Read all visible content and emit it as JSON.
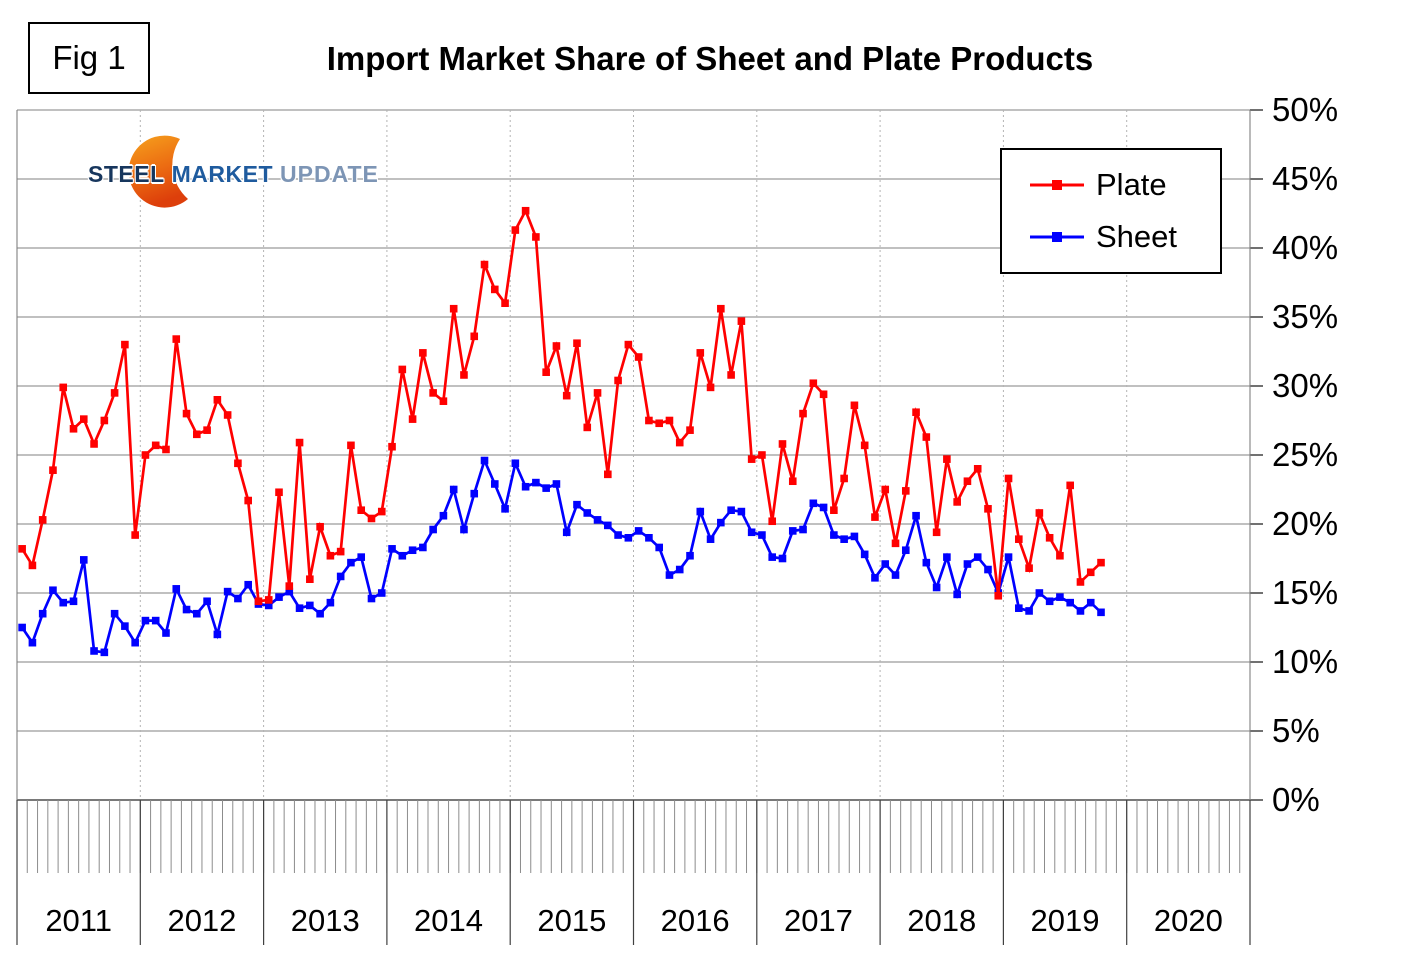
{
  "fig_label": "Fig 1",
  "title": "Import Market Share of Sheet and Plate Products",
  "logo": {
    "word1": "STEEL",
    "word2": "MARKET",
    "word3": "UPDATE"
  },
  "legend": {
    "items": [
      {
        "label": "Plate",
        "color": "#ff0000"
      },
      {
        "label": "Sheet",
        "color": "#0000ff"
      }
    ]
  },
  "chart_data": {
    "type": "line",
    "title": "Import Market Share of Sheet and Plate Products",
    "xlabel": "",
    "ylabel": "",
    "ylim": [
      0,
      50
    ],
    "grid": true,
    "legend_position": "top-right",
    "x_unit": "month",
    "x_total_months": 120,
    "years": [
      "2011",
      "2012",
      "2013",
      "2014",
      "2015",
      "2016",
      "2017",
      "2018",
      "2019",
      "2020"
    ],
    "x_range_of_data": "Jan 2011 - Oct 2019",
    "y_ticks": [
      {
        "value": 0,
        "label": "0%"
      },
      {
        "value": 5,
        "label": "5%"
      },
      {
        "value": 10,
        "label": "10%"
      },
      {
        "value": 15,
        "label": "15%"
      },
      {
        "value": 20,
        "label": "20%"
      },
      {
        "value": 25,
        "label": "25%"
      },
      {
        "value": 30,
        "label": "30%"
      },
      {
        "value": 35,
        "label": "35%"
      },
      {
        "value": 40,
        "label": "40%"
      },
      {
        "value": 45,
        "label": "45%"
      },
      {
        "value": 50,
        "label": "50%"
      }
    ],
    "series": [
      {
        "name": "Plate",
        "color": "#ff0000",
        "values": [
          18.2,
          17.0,
          20.3,
          23.9,
          29.9,
          26.9,
          27.6,
          25.8,
          27.5,
          29.5,
          33.0,
          19.2,
          25.0,
          25.7,
          25.4,
          33.4,
          28.0,
          26.5,
          26.8,
          29.0,
          27.9,
          24.4,
          21.7,
          14.4,
          14.5,
          22.3,
          15.5,
          25.9,
          16.0,
          19.8,
          17.7,
          18.0,
          25.7,
          21.0,
          20.4,
          20.9,
          25.6,
          31.2,
          27.6,
          32.4,
          29.5,
          28.9,
          35.6,
          30.8,
          33.6,
          38.8,
          37.0,
          36.0,
          41.3,
          42.7,
          40.8,
          31.0,
          32.9,
          29.3,
          33.1,
          27.0,
          29.5,
          23.6,
          30.4,
          33.0,
          32.1,
          27.5,
          27.3,
          27.5,
          25.9,
          26.8,
          32.4,
          29.9,
          35.6,
          30.8,
          34.7,
          24.7,
          25.0,
          20.2,
          25.8,
          23.1,
          28.0,
          30.2,
          29.4,
          21.0,
          23.3,
          28.6,
          25.7,
          20.5,
          22.5,
          18.6,
          22.4,
          28.1,
          26.3,
          19.4,
          24.7,
          21.6,
          23.1,
          24.0,
          21.1,
          14.8,
          23.3,
          18.9,
          16.8,
          20.8,
          19.0,
          17.7,
          22.8,
          15.8,
          16.5,
          17.2
        ]
      },
      {
        "name": "Sheet",
        "color": "#0000ff",
        "values": [
          12.5,
          11.4,
          13.5,
          15.2,
          14.3,
          14.4,
          17.4,
          10.8,
          10.7,
          13.5,
          12.6,
          11.4,
          13.0,
          13.0,
          12.1,
          15.3,
          13.8,
          13.5,
          14.4,
          12.0,
          15.1,
          14.6,
          15.6,
          14.2,
          14.1,
          14.7,
          15.1,
          13.9,
          14.1,
          13.5,
          14.3,
          16.2,
          17.2,
          17.6,
          14.6,
          15.0,
          18.2,
          17.7,
          18.1,
          18.3,
          19.6,
          20.6,
          22.5,
          19.6,
          22.2,
          24.6,
          22.9,
          21.1,
          24.4,
          22.7,
          23.0,
          22.6,
          22.9,
          19.4,
          21.4,
          20.8,
          20.3,
          19.9,
          19.2,
          19.0,
          19.5,
          19.0,
          18.3,
          16.3,
          16.7,
          17.7,
          20.9,
          18.9,
          20.1,
          21.0,
          20.9,
          19.4,
          19.2,
          17.6,
          17.5,
          19.5,
          19.6,
          21.5,
          21.2,
          19.2,
          18.9,
          19.1,
          17.8,
          16.1,
          17.1,
          16.3,
          18.1,
          20.6,
          17.2,
          15.4,
          17.6,
          14.9,
          17.1,
          17.6,
          16.7,
          15.0,
          17.6,
          13.9,
          13.7,
          15.0,
          14.4,
          14.7,
          14.3,
          13.7,
          14.3,
          13.6
        ]
      }
    ]
  }
}
